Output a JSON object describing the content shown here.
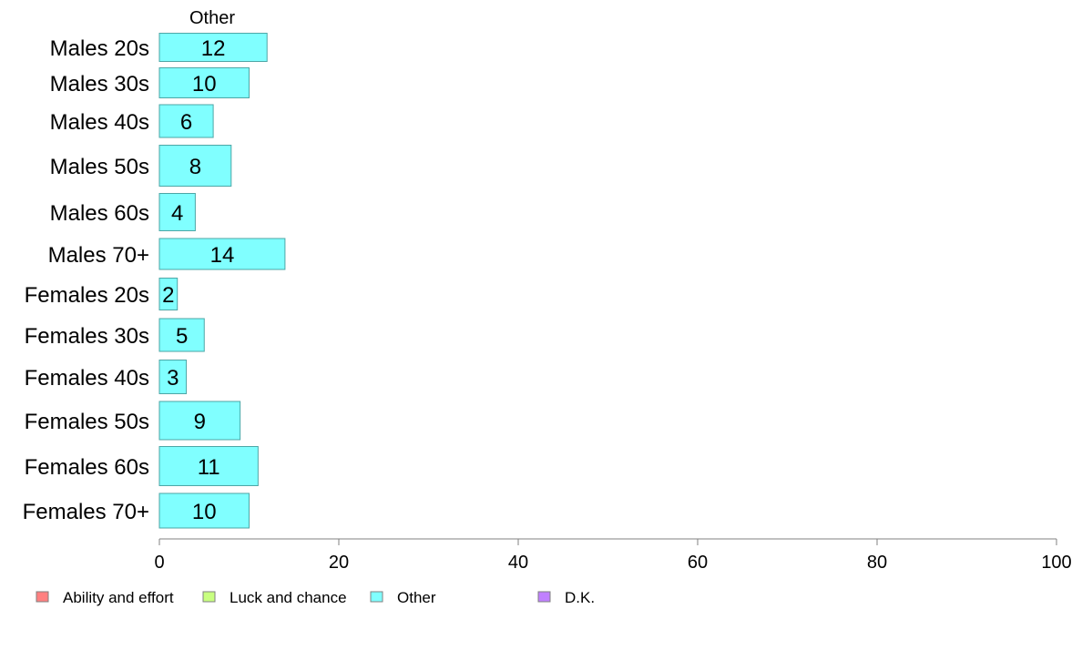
{
  "chart_data": {
    "type": "bar",
    "orientation": "horizontal",
    "panel_title": "Other",
    "categories": [
      "Males 20s",
      "Males 30s",
      "Males 40s",
      "Males 50s",
      "Males 60s",
      "Males 70+",
      "Females 20s",
      "Females 30s",
      "Females 40s",
      "Females 50s",
      "Females 60s",
      "Females 70+"
    ],
    "series": [
      {
        "name": "Other",
        "color": "#80ffff",
        "values": [
          12,
          10,
          6,
          8,
          4,
          14,
          2,
          5,
          3,
          9,
          11,
          10
        ]
      }
    ],
    "xlim": [
      0,
      100
    ],
    "xticks": [
      0,
      20,
      40,
      60,
      80,
      100
    ],
    "grid": false,
    "legend_position": "bottom-left",
    "legend": [
      {
        "label": "Ability and effort",
        "color": "#ff8080"
      },
      {
        "label": "Luck and chance",
        "color": "#c8ff80"
      },
      {
        "label": "Other",
        "color": "#80ffff"
      },
      {
        "label": "D.K.",
        "color": "#c080ff"
      }
    ],
    "bar_edge_color": "#4da6a6",
    "axis_color": "#808080"
  }
}
